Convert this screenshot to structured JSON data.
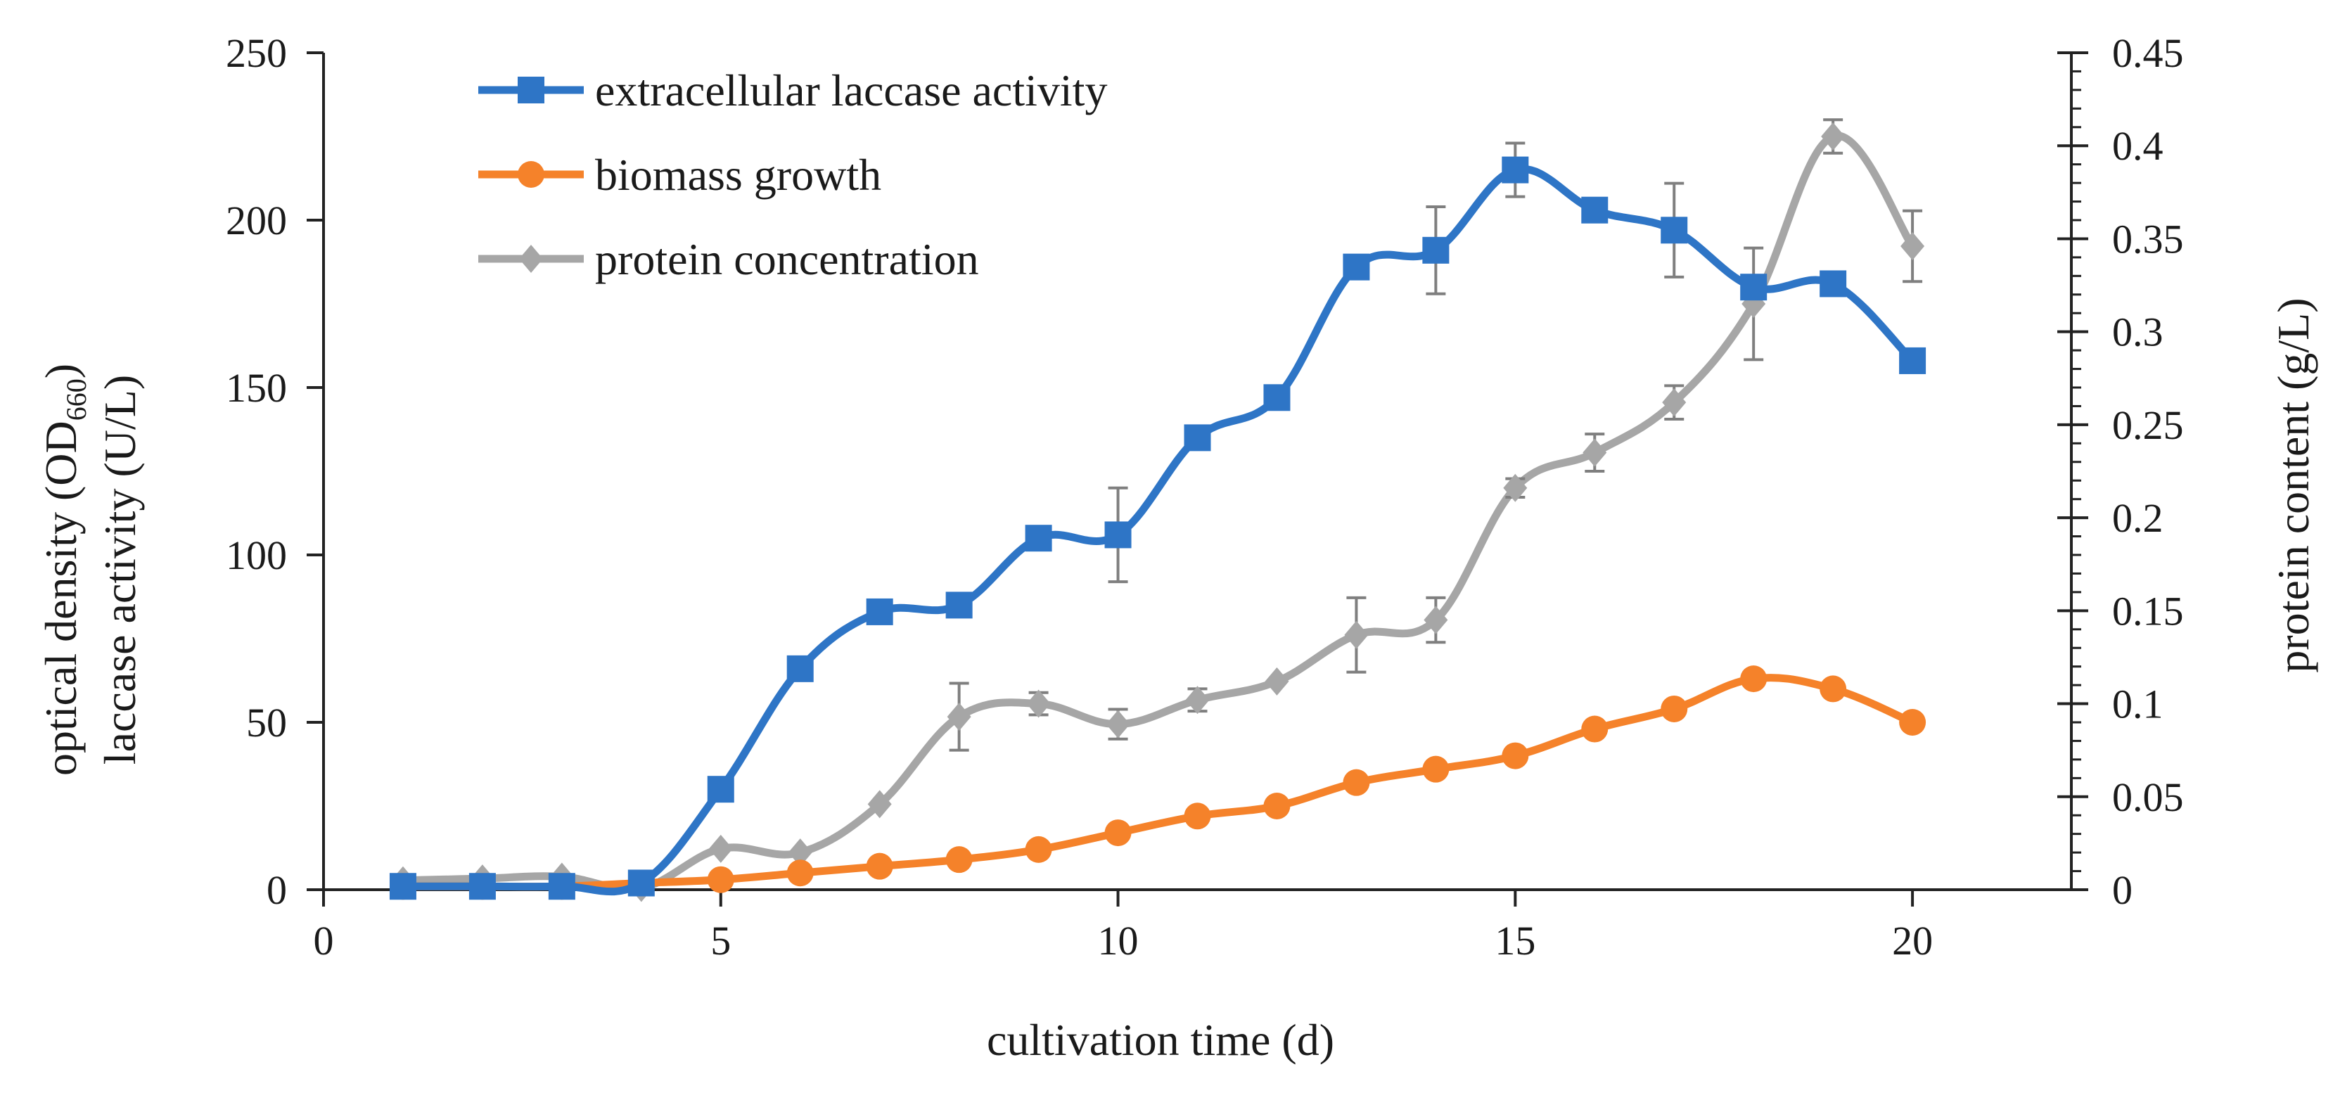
{
  "chart_data": {
    "type": "line",
    "title": "",
    "xlabel": "cultivation time (d)",
    "ylabel_left_line1": "optical density (OD",
    "ylabel_left_sub": "660",
    "ylabel_left_line1_end": ")",
    "ylabel_left_line2": "laccase activity (U/L)",
    "ylabel_right": "protein content (g/L)",
    "xlim": [
      0,
      22
    ],
    "ylim_left": [
      0,
      250
    ],
    "ylim_right": [
      0,
      0.45
    ],
    "x_ticks": [
      0,
      5,
      10,
      15,
      20
    ],
    "y_left_ticks": [
      0,
      50,
      100,
      150,
      200,
      250
    ],
    "y_right_ticks": [
      0,
      0.05,
      0.1,
      0.15,
      0.2,
      0.25,
      0.3,
      0.35,
      0.4,
      0.45
    ],
    "y_right_tick_labels": [
      "0",
      "0.05",
      "0.1",
      "0.15",
      "0.2",
      "0.25",
      "0.3",
      "0.35",
      "0.4",
      "0.45"
    ],
    "legend_position": "top-left",
    "series": [
      {
        "name": "extracellular laccase activity",
        "axis": "left",
        "color": "#2e75c6",
        "marker": "square",
        "x": [
          1,
          2,
          3,
          4,
          5,
          6,
          7,
          8,
          9,
          10,
          11,
          12,
          13,
          14,
          15,
          16,
          17,
          18,
          19,
          20
        ],
        "values": [
          1,
          1,
          1,
          2,
          30,
          66,
          83,
          85,
          105,
          106,
          135,
          147,
          186,
          191,
          215,
          203,
          197,
          180,
          181,
          158
        ],
        "errors": [
          0,
          0,
          0,
          0,
          0,
          0,
          0,
          0,
          0,
          14,
          0,
          0,
          0,
          13,
          8,
          0,
          14,
          0,
          0,
          0
        ]
      },
      {
        "name": "biomass growth",
        "axis": "left",
        "color": "#f5822a",
        "marker": "circle",
        "x": [
          1,
          2,
          3,
          4,
          5,
          6,
          7,
          8,
          9,
          10,
          11,
          12,
          13,
          14,
          15,
          16,
          17,
          18,
          19,
          20
        ],
        "values": [
          1,
          1,
          1,
          2,
          3,
          5,
          7,
          9,
          12,
          17,
          22,
          25,
          32,
          36,
          40,
          48,
          54,
          63,
          60,
          50
        ],
        "errors": [
          0,
          0,
          0,
          0,
          0,
          0,
          0,
          0,
          0,
          0,
          0,
          0,
          0,
          0,
          0,
          0,
          0,
          0,
          0,
          0
        ]
      },
      {
        "name": "protein concentration",
        "axis": "right",
        "color": "#a6a6a6",
        "marker": "diamond",
        "x": [
          1,
          2,
          3,
          4,
          5,
          6,
          7,
          8,
          9,
          10,
          11,
          12,
          13,
          14,
          15,
          16,
          17,
          18,
          19,
          20
        ],
        "values": [
          0.005,
          0.006,
          0.007,
          0.001,
          0.022,
          0.02,
          0.046,
          0.093,
          0.1,
          0.089,
          0.102,
          0.112,
          0.137,
          0.145,
          0.216,
          0.235,
          0.262,
          0.315,
          0.405,
          0.346
        ],
        "errors": [
          0,
          0,
          0,
          0,
          0,
          0,
          0,
          0.018,
          0.006,
          0.008,
          0.006,
          0,
          0.02,
          0.012,
          0.005,
          0.01,
          0.009,
          0.03,
          0.009,
          0.019
        ]
      }
    ]
  }
}
